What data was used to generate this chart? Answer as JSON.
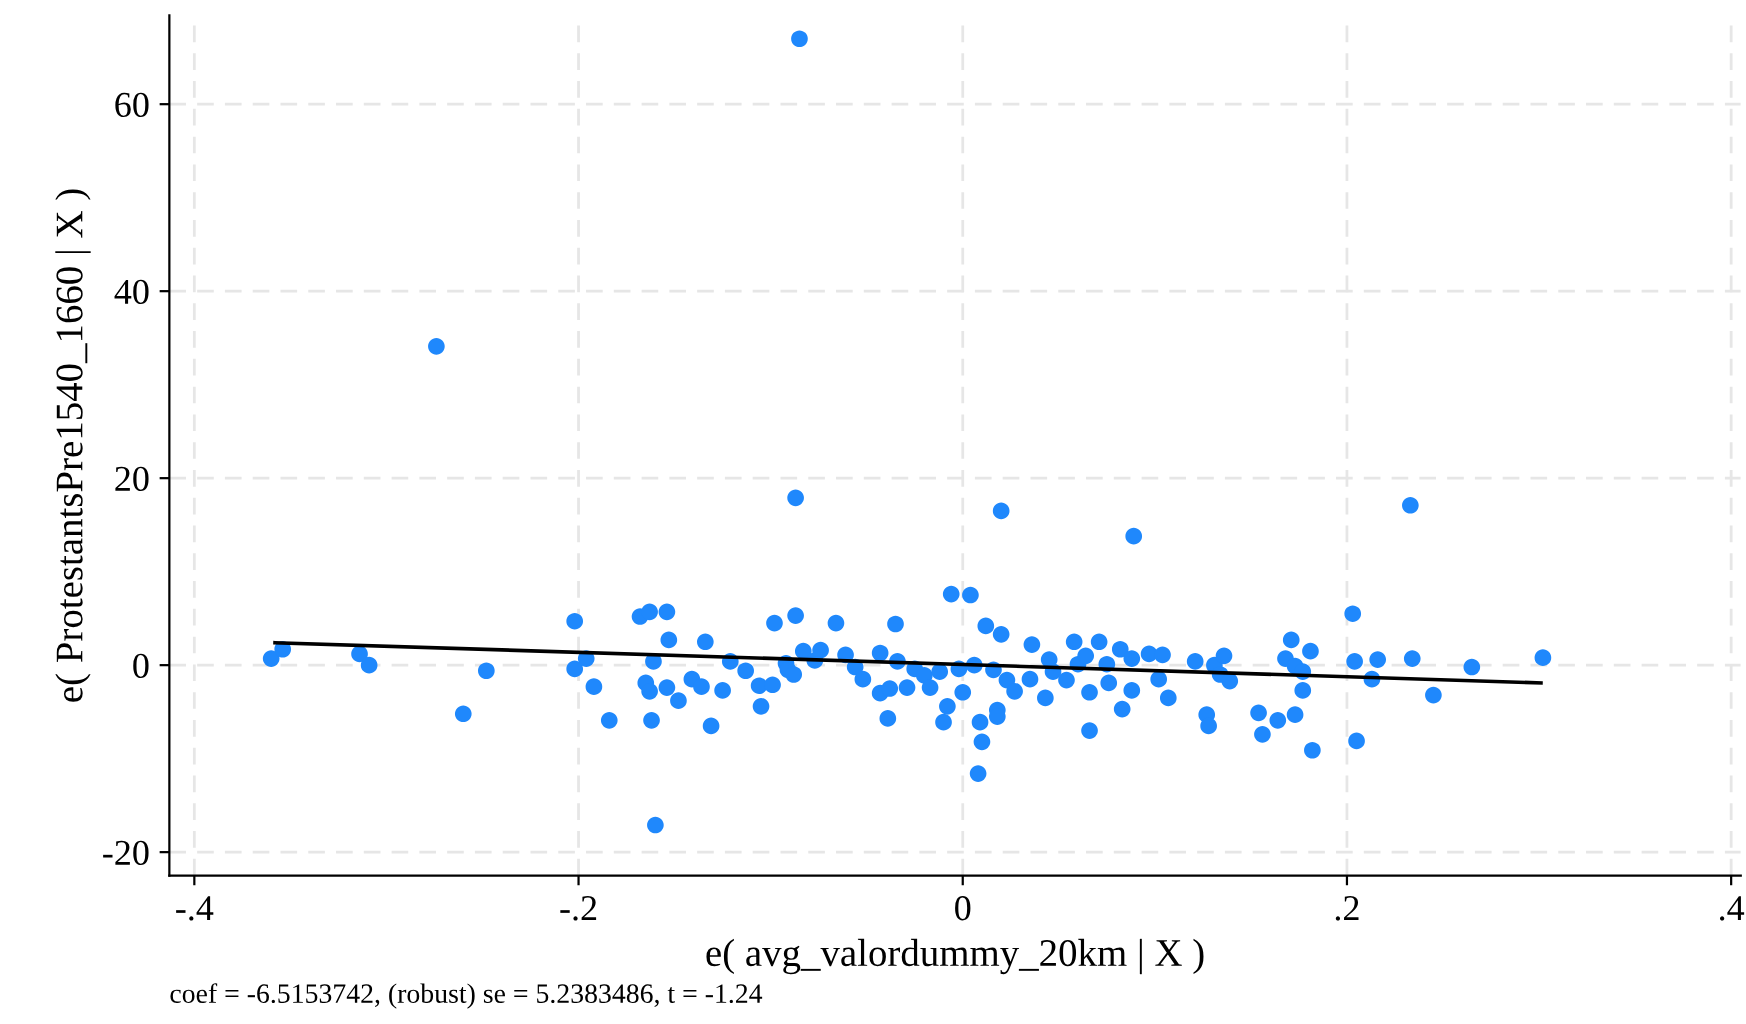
{
  "chart_data": {
    "type": "scatter",
    "xlabel": "e( avg_valordummy_20km | X )",
    "ylabel": "e( ProtestantsPre1540_1660 | X )",
    "annotations": [
      "coef = -6.5153742, (robust) se = 5.2383486, t = -1.24"
    ],
    "xlim": [
      -0.413,
      0.405
    ],
    "ylim": [
      -22.5,
      69.5
    ],
    "xticks": [
      {
        "value": -0.4,
        "label": "-.4"
      },
      {
        "value": -0.2,
        "label": "-.2"
      },
      0,
      {
        "value": 0.2,
        "label": ".2"
      },
      {
        "value": 0.4,
        "label": ".4"
      }
    ],
    "yticks": [
      -20,
      0,
      20,
      40,
      60
    ],
    "grid": true,
    "series": [
      {
        "marker": "circle",
        "color": "#1f88fc",
        "x": [
          -0.36,
          -0.354,
          -0.314,
          -0.309,
          -0.274,
          -0.26,
          -0.248,
          -0.202,
          -0.202,
          -0.196,
          -0.192,
          -0.184,
          -0.168,
          -0.163,
          -0.161,
          -0.165,
          -0.163,
          -0.162,
          -0.16,
          -0.154,
          -0.153,
          -0.154,
          -0.148,
          -0.141,
          -0.136,
          -0.134,
          -0.131,
          -0.125,
          -0.121,
          -0.113,
          -0.106,
          -0.105,
          -0.099,
          -0.098,
          -0.092,
          -0.091,
          -0.088,
          -0.087,
          -0.087,
          -0.085,
          -0.083,
          -0.077,
          -0.074,
          -0.066,
          -0.061,
          -0.056,
          -0.052,
          -0.043,
          -0.043,
          -0.039,
          -0.038,
          -0.035,
          -0.034,
          -0.029,
          -0.025,
          -0.02,
          -0.017,
          -0.012,
          -0.01,
          -0.008,
          -0.006,
          -0.002,
          0.0,
          0.004,
          0.006,
          0.008,
          0.009,
          0.01,
          0.012,
          0.016,
          0.018,
          0.018,
          0.02,
          0.02,
          0.023,
          0.027,
          0.035,
          0.036,
          0.043,
          0.045,
          0.047,
          0.054,
          0.058,
          0.06,
          0.064,
          0.066,
          0.066,
          0.071,
          0.075,
          0.076,
          0.082,
          0.083,
          0.088,
          0.088,
          0.089,
          0.097,
          0.104,
          0.102,
          0.107,
          0.121,
          0.127,
          0.128,
          0.131,
          0.136,
          0.134,
          0.139,
          0.154,
          0.156,
          0.164,
          0.168,
          0.171,
          0.173,
          0.173,
          0.177,
          0.177,
          0.181,
          0.182,
          0.203,
          0.204,
          0.205,
          0.213,
          0.216,
          0.233,
          0.234,
          0.245,
          0.265,
          0.302
        ],
        "values": [
          0.7,
          1.7,
          1.2,
          0,
          34.1,
          -5.2,
          -0.6,
          4.7,
          -0.4,
          0.7,
          -2.3,
          -5.9,
          5.2,
          5.7,
          0.4,
          -1.9,
          -2.8,
          -5.9,
          -17.1,
          5.7,
          2.7,
          -2.4,
          -3.8,
          -1.5,
          -2.3,
          2.5,
          -6.5,
          -2.7,
          0.4,
          -0.6,
          -2.2,
          -4.4,
          -2.1,
          4.5,
          0.2,
          -0.5,
          -1.0,
          5.3,
          17.9,
          67.0,
          1.5,
          0.5,
          1.6,
          4.5,
          1.1,
          -0.2,
          -1.5,
          1.3,
          -3.0,
          -5.7,
          -2.5,
          4.4,
          0.4,
          -2.4,
          -0.4,
          -1.1,
          -2.4,
          -0.7,
          -6.1,
          -4.4,
          7.6,
          -0.4,
          -2.9,
          7.5,
          0,
          -11.6,
          -6.1,
          -8.2,
          4.2,
          -0.5,
          -4.8,
          -5.5,
          3.3,
          16.5,
          -1.6,
          -2.8,
          -1.5,
          2.2,
          -3.5,
          0.6,
          -0.7,
          -1.6,
          2.5,
          0.1,
          1.0,
          -2.9,
          -7.0,
          2.5,
          0.1,
          -1.9,
          1.7,
          -4.7,
          0.7,
          -2.7,
          13.8,
          1.2,
          1.1,
          -1.5,
          -3.5,
          0.4,
          -5.3,
          -6.5,
          0,
          1.0,
          -1.0,
          -1.7,
          -5.1,
          -7.4,
          -5.9,
          0.7,
          2.7,
          -0.1,
          -5.3,
          -2.7,
          -0.7,
          1.5,
          -9.1,
          5.5,
          0.4,
          -8.1,
          -1.5,
          0.6,
          17.1,
          0.7,
          -3.2,
          -0.2,
          0.8
        ]
      },
      {
        "type": "line",
        "color": "#000000",
        "x": [
          -0.358,
          0.301
        ],
        "values": [
          2.4,
          -1.9
        ]
      }
    ]
  }
}
